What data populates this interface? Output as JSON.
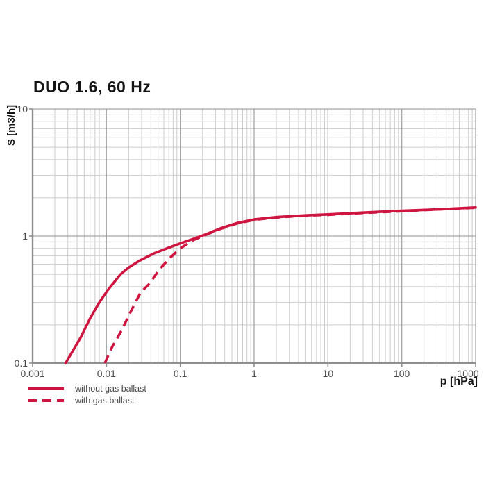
{
  "chart_data": {
    "type": "line",
    "title": "DUO 1.6, 60 Hz",
    "xlabel": "p [hPa]",
    "ylabel": "S [m3/h]",
    "x_scale": "log",
    "y_scale": "log",
    "xlim": [
      0.001,
      1000
    ],
    "ylim": [
      0.1,
      10
    ],
    "x_ticks": [
      0.001,
      0.01,
      0.1,
      1,
      10,
      100,
      1000
    ],
    "x_tick_labels": [
      "0.001",
      "0.01",
      "0.1",
      "1",
      "10",
      "100",
      "1000"
    ],
    "y_ticks": [
      0.1,
      1,
      10
    ],
    "y_tick_labels": [
      "0.1",
      "1",
      "10"
    ],
    "grid": true,
    "legend_position": "bottom-left",
    "accent_color": "#d01440",
    "grid_minor_color": "#cccccc",
    "grid_major_color": "#a6a6a6",
    "axis_color": "#8f8f8f",
    "series": [
      {
        "name": "without gas ballast",
        "style": "solid",
        "color": "#d01440",
        "points": [
          [
            0.0028,
            0.1
          ],
          [
            0.0035,
            0.125
          ],
          [
            0.0045,
            0.16
          ],
          [
            0.006,
            0.225
          ],
          [
            0.008,
            0.3
          ],
          [
            0.0104,
            0.375
          ],
          [
            0.013,
            0.44
          ],
          [
            0.0155,
            0.5
          ],
          [
            0.02,
            0.565
          ],
          [
            0.028,
            0.64
          ],
          [
            0.044,
            0.73
          ],
          [
            0.07,
            0.81
          ],
          [
            0.1,
            0.875
          ],
          [
            0.15,
            0.95
          ],
          [
            0.22,
            1.03
          ],
          [
            0.35,
            1.15
          ],
          [
            0.6,
            1.27
          ],
          [
            1,
            1.35
          ],
          [
            2,
            1.41
          ],
          [
            5,
            1.455
          ],
          [
            10,
            1.48
          ],
          [
            30,
            1.53
          ],
          [
            100,
            1.58
          ],
          [
            300,
            1.62
          ],
          [
            1000,
            1.68
          ]
        ]
      },
      {
        "name": "with gas ballast",
        "style": "dashed",
        "color": "#d01440",
        "points": [
          [
            0.0095,
            0.1
          ],
          [
            0.012,
            0.135
          ],
          [
            0.016,
            0.18
          ],
          [
            0.021,
            0.25
          ],
          [
            0.029,
            0.36
          ],
          [
            0.038,
            0.42
          ],
          [
            0.052,
            0.545
          ],
          [
            0.07,
            0.66
          ],
          [
            0.1,
            0.8
          ],
          [
            0.15,
            0.93
          ],
          [
            0.22,
            1.02
          ],
          [
            0.35,
            1.14
          ],
          [
            0.6,
            1.26
          ],
          [
            1,
            1.34
          ],
          [
            2,
            1.4
          ],
          [
            5,
            1.45
          ],
          [
            10,
            1.47
          ],
          [
            30,
            1.52
          ],
          [
            100,
            1.57
          ],
          [
            300,
            1.62
          ],
          [
            1000,
            1.67
          ]
        ]
      }
    ]
  }
}
